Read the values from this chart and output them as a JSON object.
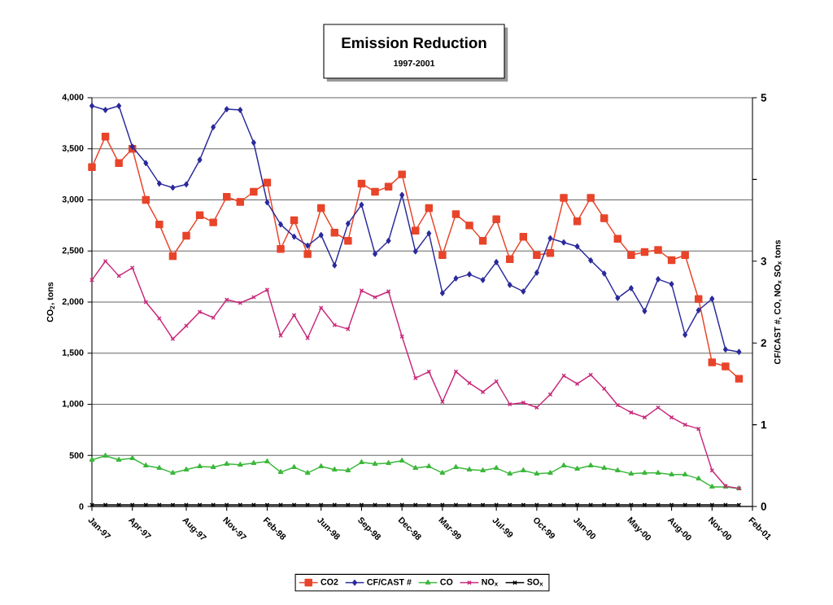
{
  "chart_data": {
    "type": "line",
    "title": "Emission Reduction",
    "subtitle": "1997-2001",
    "ylabel": "CO$_{2}$, tons",
    "y2label": "CF/CAST #, CO, NO$_{x}$ SO$_{x}$ tons",
    "x": [
      "1997-01",
      "1997-02",
      "1997-03",
      "1997-04",
      "1997-05",
      "1997-06",
      "1997-07",
      "1997-08",
      "1997-09",
      "1997-10",
      "1997-11",
      "1997-12",
      "1998-01",
      "1998-02",
      "1998-03",
      "1998-04",
      "1998-05",
      "1998-06",
      "1998-07",
      "1998-08",
      "1998-09",
      "1998-10",
      "1998-11",
      "1998-12",
      "1999-01",
      "1999-02",
      "1999-03",
      "1999-04",
      "1999-05",
      "1999-06",
      "1999-07",
      "1999-08",
      "1999-09",
      "1999-10",
      "1999-11",
      "1999-12",
      "2000-01",
      "2000-02",
      "2000-03",
      "2000-04",
      "2000-05",
      "2000-06",
      "2000-07",
      "2000-08",
      "2000-09",
      "2000-10",
      "2000-11",
      "2000-12",
      "2001-01"
    ],
    "xlim": [
      "1997-01",
      "2001-02"
    ],
    "xticks": [
      {
        "value": "1997-01",
        "label": "Jan-97"
      },
      {
        "value": "1997-04",
        "label": "Apr-97"
      },
      {
        "value": "1997-08",
        "label": "Aug-97"
      },
      {
        "value": "1997-11",
        "label": "Nov-97"
      },
      {
        "value": "1998-02",
        "label": "Feb-98"
      },
      {
        "value": "1998-06",
        "label": "Jun-98"
      },
      {
        "value": "1998-09",
        "label": "Sep-98"
      },
      {
        "value": "1998-12",
        "label": "Dec-98"
      },
      {
        "value": "1999-03",
        "label": "Mar-99"
      },
      {
        "value": "1999-07",
        "label": "Jul-99"
      },
      {
        "value": "1999-10",
        "label": "Oct-99"
      },
      {
        "value": "2000-01",
        "label": "Jan-00"
      },
      {
        "value": "2000-05",
        "label": "May-00"
      },
      {
        "value": "2000-08",
        "label": "Aug-00"
      },
      {
        "value": "2000-11",
        "label": "Nov-00"
      },
      {
        "value": "2001-02",
        "label": "Feb-01"
      }
    ],
    "ylim": [
      0,
      4000
    ],
    "yticks": [
      0,
      500,
      {
        "value": 1000,
        "label": "1,000"
      },
      {
        "value": 1500,
        "label": "1,500"
      },
      {
        "value": 2000,
        "label": "2,000"
      },
      {
        "value": 2500,
        "label": "2,500"
      },
      {
        "value": 3000,
        "label": "3,000"
      },
      {
        "value": 3500,
        "label": "3,500"
      },
      {
        "value": 4000,
        "label": "4,000"
      }
    ],
    "y2lim": [
      0,
      5
    ],
    "y2ticks": [
      0,
      1,
      2,
      3,
      {
        "value": 4,
        "label": null
      },
      5
    ],
    "grid": "y",
    "legend": "bottom",
    "line_style": "solid",
    "series": [
      {
        "name": "CO2",
        "color": "#e8442a",
        "marker": "square",
        "values": [
          3320,
          3620,
          3360,
          3500,
          3000,
          2760,
          2450,
          2650,
          2850,
          2780,
          3030,
          2980,
          3080,
          3170,
          2520,
          2800,
          2470,
          2920,
          2680,
          2600,
          3160,
          3080,
          3130,
          3250,
          2700,
          2920,
          2460,
          2860,
          2750,
          2600,
          2810,
          2420,
          2640,
          2460,
          2480,
          3020,
          2790,
          3020,
          2820,
          2620,
          2460,
          2490,
          2510,
          2410,
          2460,
          2030,
          1410,
          1370,
          1250
        ]
      },
      {
        "name": "CF/CAST #",
        "color": "#2b2a9c",
        "marker": "diamond",
        "axis": "y2",
        "values": [
          4.9,
          4.85,
          4.9,
          4.4,
          4.2,
          3.95,
          3.9,
          3.94,
          4.24,
          4.64,
          4.86,
          4.85,
          4.45,
          3.72,
          3.45,
          3.3,
          3.19,
          3.32,
          2.95,
          3.46,
          3.69,
          3.09,
          3.25,
          3.81,
          3.12,
          3.34,
          2.61,
          2.79,
          2.84,
          2.77,
          2.99,
          2.71,
          2.63,
          2.86,
          3.28,
          3.23,
          3.18,
          3.01,
          2.85,
          2.55,
          2.67,
          2.39,
          2.78,
          2.72,
          2.1,
          2.4,
          2.54,
          1.92,
          1.89
        ]
      },
      {
        "name": "CO",
        "color": "#3cb83c",
        "marker": "triangle",
        "axis": "y2",
        "values": [
          0.57,
          0.62,
          0.57,
          0.59,
          0.5,
          0.47,
          0.41,
          0.45,
          0.49,
          0.48,
          0.52,
          0.51,
          0.53,
          0.55,
          0.42,
          0.48,
          0.41,
          0.49,
          0.45,
          0.44,
          0.54,
          0.52,
          0.53,
          0.56,
          0.47,
          0.49,
          0.41,
          0.48,
          0.45,
          0.44,
          0.47,
          0.4,
          0.44,
          0.4,
          0.41,
          0.5,
          0.46,
          0.5,
          0.47,
          0.44,
          0.4,
          0.41,
          0.41,
          0.39,
          0.39,
          0.34,
          0.24,
          0.24,
          0.22
        ]
      },
      {
        "name": "NO$_{x}$",
        "color": "#c8287a",
        "marker": "cross",
        "axis": "y2",
        "values": [
          2.77,
          3.0,
          2.82,
          2.92,
          2.5,
          2.3,
          2.05,
          2.21,
          2.38,
          2.31,
          2.53,
          2.49,
          2.56,
          2.65,
          2.09,
          2.34,
          2.06,
          2.43,
          2.22,
          2.17,
          2.64,
          2.56,
          2.63,
          2.08,
          1.57,
          1.65,
          1.28,
          1.65,
          1.51,
          1.4,
          1.53,
          1.25,
          1.27,
          1.21,
          1.37,
          1.6,
          1.5,
          1.61,
          1.44,
          1.24,
          1.15,
          1.09,
          1.21,
          1.09,
          1.0,
          0.95,
          0.44,
          0.25,
          0.22
        ]
      },
      {
        "name": "SO$_{x}$",
        "color": "#000000",
        "marker": "cross",
        "axis": "y2",
        "values": [
          0.02,
          0.02,
          0.02,
          0.02,
          0.02,
          0.02,
          0.02,
          0.02,
          0.02,
          0.02,
          0.02,
          0.02,
          0.02,
          0.02,
          0.02,
          0.02,
          0.02,
          0.02,
          0.02,
          0.02,
          0.02,
          0.02,
          0.02,
          0.02,
          0.02,
          0.02,
          0.02,
          0.02,
          0.02,
          0.02,
          0.02,
          0.02,
          0.02,
          0.02,
          0.02,
          0.02,
          0.02,
          0.02,
          0.02,
          0.02,
          0.02,
          0.02,
          0.02,
          0.02,
          0.02,
          0.02,
          0.02,
          0.02,
          0.02
        ]
      }
    ]
  }
}
